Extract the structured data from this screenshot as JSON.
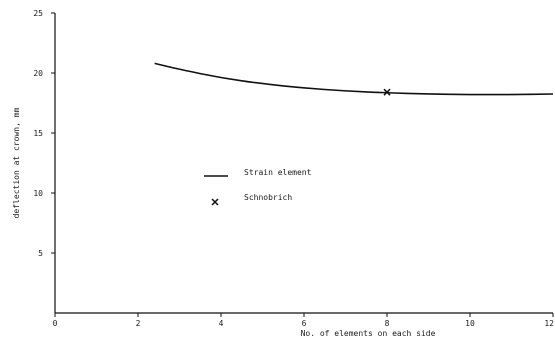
{
  "chart_data": {
    "type": "line",
    "xlabel": "No. of elements on each side",
    "ylabel": "deflection at crown, mm",
    "xlim": [
      0,
      12
    ],
    "ylim": [
      0,
      25
    ],
    "x_ticks": [
      0,
      2,
      4,
      6,
      8,
      10,
      12
    ],
    "y_ticks": [
      5,
      10,
      15,
      20,
      25
    ],
    "grid": false,
    "legend_position": "center-left",
    "series": [
      {
        "name": "Strain element",
        "style": "line",
        "x": [
          2.4,
          3.0,
          4.0,
          5.0,
          6.0,
          7.0,
          8.0,
          9.0,
          10.0,
          11.0,
          12.0
        ],
        "y": [
          20.8,
          20.3,
          19.6,
          19.1,
          18.75,
          18.5,
          18.35,
          18.25,
          18.2,
          18.2,
          18.25
        ]
      },
      {
        "name": "Schnobrich",
        "style": "marker",
        "marker": "x",
        "x": [
          8.0
        ],
        "y": [
          18.4
        ]
      }
    ]
  }
}
